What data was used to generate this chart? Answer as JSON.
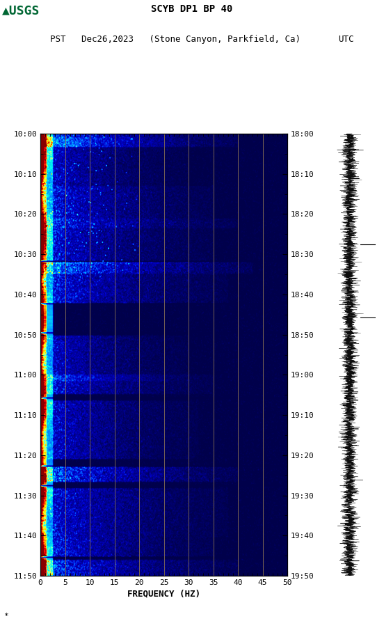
{
  "title_line1": "SCYB DP1 BP 40",
  "title_line2_left": "PST   Dec26,2023   (Stone Canyon, Parkfield, Ca)",
  "title_line2_right": "UTC",
  "xlabel": "FREQUENCY (HZ)",
  "freq_min": 0,
  "freq_max": 50,
  "ytick_pst": [
    "10:00",
    "10:10",
    "10:20",
    "10:30",
    "10:40",
    "10:50",
    "11:00",
    "11:10",
    "11:20",
    "11:30",
    "11:40",
    "11:50"
  ],
  "ytick_utc": [
    "18:00",
    "18:10",
    "18:20",
    "18:30",
    "18:40",
    "18:50",
    "19:00",
    "19:10",
    "19:20",
    "19:30",
    "19:40",
    "19:50"
  ],
  "xtick_labels": [
    "0",
    "5",
    "10",
    "15",
    "20",
    "25",
    "30",
    "35",
    "40",
    "45",
    "50"
  ],
  "xtick_positions": [
    0,
    5,
    10,
    15,
    20,
    25,
    30,
    35,
    40,
    45,
    50
  ],
  "vline_positions": [
    5,
    10,
    15,
    20,
    25,
    30,
    35,
    40,
    45
  ],
  "vline_color": "#8B7355",
  "fig_width": 5.52,
  "fig_height": 8.92,
  "dpi": 100
}
